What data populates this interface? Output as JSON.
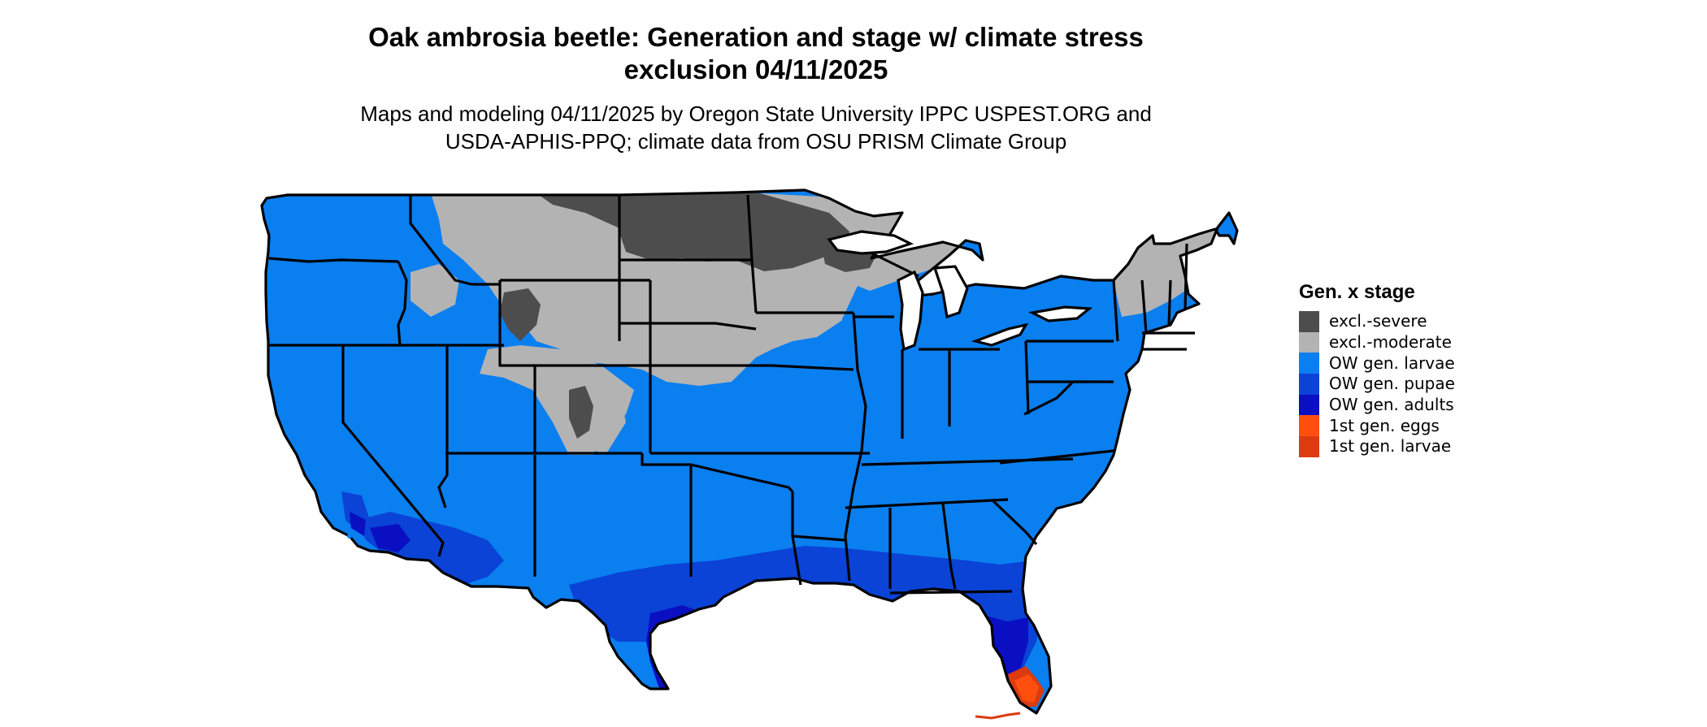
{
  "title": {
    "line1": "Oak ambrosia beetle: Generation and stage w/ climate stress",
    "line2": "exclusion 04/11/2025"
  },
  "subtitle": {
    "line1": "Maps and modeling 04/11/2025 by Oregon State University IPPC USPEST.ORG and",
    "line2": "USDA-APHIS-PPQ; climate data from OSU PRISM Climate Group"
  },
  "legend": {
    "title": "Gen. x stage",
    "items": [
      {
        "label": "excl.-severe",
        "color": "#4d4d4d"
      },
      {
        "label": "excl.-moderate",
        "color": "#b3b3b3"
      },
      {
        "label": "OW gen. larvae",
        "color": "#0a7ff0"
      },
      {
        "label": "OW gen. pupae",
        "color": "#0a43d6"
      },
      {
        "label": "OW gen. adults",
        "color": "#0a0fc2"
      },
      {
        "label": "1st gen. eggs",
        "color": "#ff4f0f"
      },
      {
        "label": "1st gen. larvae",
        "color": "#db3b0f"
      }
    ]
  }
}
